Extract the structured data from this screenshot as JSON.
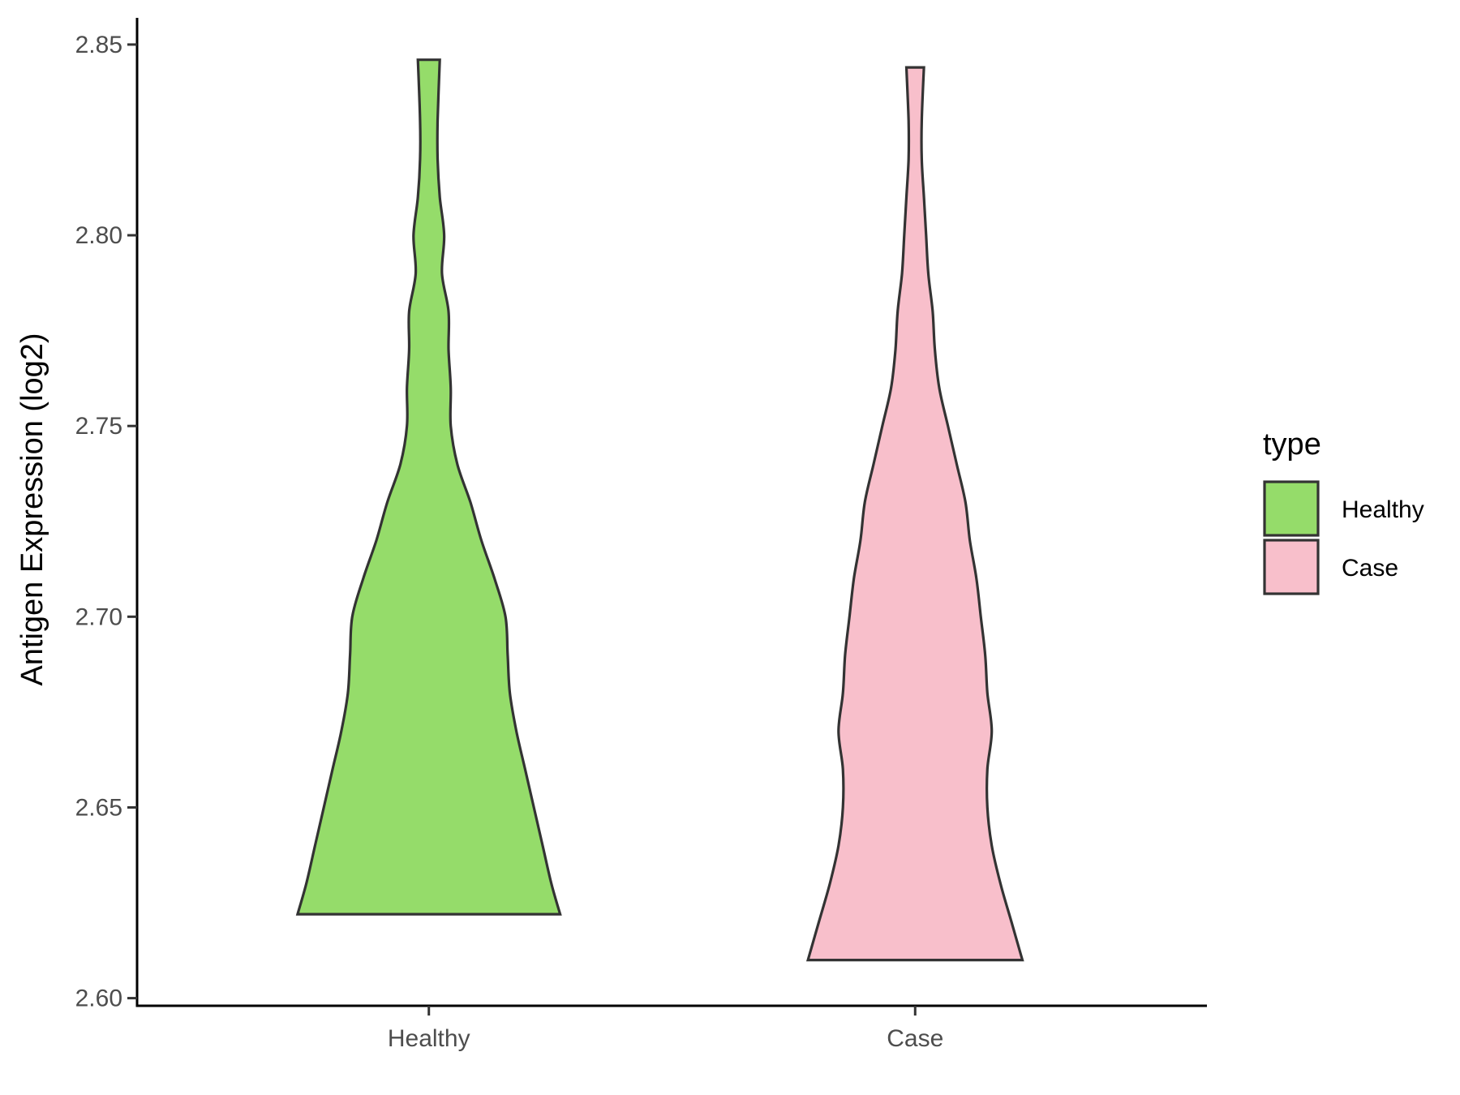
{
  "chart_data": {
    "type": "violin",
    "title": "",
    "xlabel": "",
    "ylabel": "Antigen Expression (log2)",
    "ylim": [
      2.598,
      2.857
    ],
    "yticks": [
      2.6,
      2.65,
      2.7,
      2.75,
      2.8,
      2.85
    ],
    "ytick_labels": [
      "2.60",
      "2.65",
      "2.70",
      "2.75",
      "2.80",
      "2.85"
    ],
    "categories": [
      "Healthy",
      "Case"
    ],
    "grid": false,
    "legend": {
      "title": "type",
      "position": "right",
      "entries": [
        {
          "label": "Healthy",
          "color": "#95dc6a"
        },
        {
          "label": "Case",
          "color": "#f8bfcb"
        }
      ]
    },
    "series": [
      {
        "name": "Healthy",
        "color": "#95dc6a",
        "min": 2.622,
        "max": 2.846,
        "density_profile": [
          [
            2.622,
            0.6
          ],
          [
            2.63,
            0.56
          ],
          [
            2.64,
            0.52
          ],
          [
            2.65,
            0.48
          ],
          [
            2.66,
            0.44
          ],
          [
            2.67,
            0.4
          ],
          [
            2.68,
            0.37
          ],
          [
            2.69,
            0.36
          ],
          [
            2.7,
            0.35
          ],
          [
            2.71,
            0.3
          ],
          [
            2.72,
            0.24
          ],
          [
            2.73,
            0.19
          ],
          [
            2.74,
            0.13
          ],
          [
            2.75,
            0.1
          ],
          [
            2.76,
            0.1
          ],
          [
            2.77,
            0.09
          ],
          [
            2.78,
            0.09
          ],
          [
            2.79,
            0.06
          ],
          [
            2.8,
            0.07
          ],
          [
            2.81,
            0.05
          ],
          [
            2.82,
            0.04
          ],
          [
            2.83,
            0.04
          ],
          [
            2.846,
            0.05
          ]
        ]
      },
      {
        "name": "Case",
        "color": "#f8bfcb",
        "min": 2.61,
        "max": 2.844,
        "density_profile": [
          [
            2.61,
            0.49
          ],
          [
            2.62,
            0.44
          ],
          [
            2.63,
            0.39
          ],
          [
            2.64,
            0.35
          ],
          [
            2.65,
            0.33
          ],
          [
            2.66,
            0.33
          ],
          [
            2.67,
            0.35
          ],
          [
            2.68,
            0.33
          ],
          [
            2.69,
            0.32
          ],
          [
            2.7,
            0.3
          ],
          [
            2.71,
            0.28
          ],
          [
            2.72,
            0.25
          ],
          [
            2.73,
            0.23
          ],
          [
            2.74,
            0.19
          ],
          [
            2.75,
            0.15
          ],
          [
            2.76,
            0.11
          ],
          [
            2.77,
            0.09
          ],
          [
            2.78,
            0.08
          ],
          [
            2.79,
            0.06
          ],
          [
            2.8,
            0.05
          ],
          [
            2.81,
            0.04
          ],
          [
            2.82,
            0.03
          ],
          [
            2.83,
            0.03
          ],
          [
            2.844,
            0.04
          ]
        ]
      }
    ]
  }
}
